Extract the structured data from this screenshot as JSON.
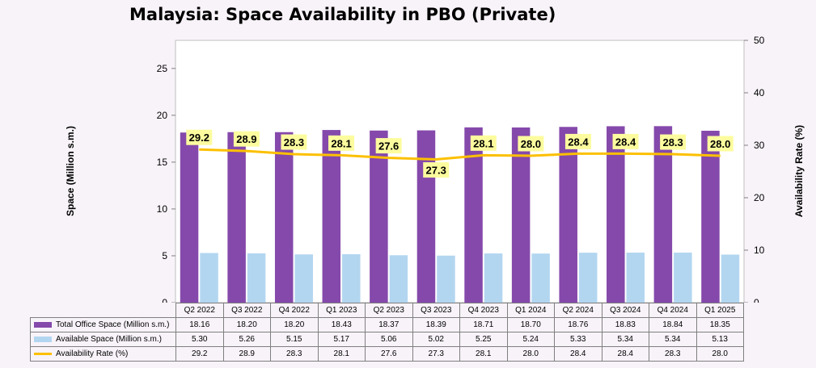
{
  "chart_data": {
    "type": "bar",
    "title": "Malaysia: Space Availability in PBO (Private)",
    "ylabel": "Space (Million s.m.)",
    "ylabel_right": "Availability Rate (%)",
    "ylim": [
      0,
      28
    ],
    "yticks": [
      0,
      5,
      10,
      15,
      20,
      25
    ],
    "ylim_right": [
      0,
      50
    ],
    "yticks_right": [
      0,
      10,
      20,
      30,
      40,
      50
    ],
    "categories": [
      "Q2 2022",
      "Q3 2022",
      "Q4 2022",
      "Q1 2023",
      "Q2 2023",
      "Q3 2023",
      "Q4 2023",
      "Q1 2024",
      "Q2 2024",
      "Q3 2024",
      "Q4 2024",
      "Q1 2025"
    ],
    "series": [
      {
        "name": "Total Office Space (Million s.m.)",
        "kind": "bar",
        "color": "#8549ab",
        "values": [
          18.16,
          18.2,
          18.2,
          18.43,
          18.37,
          18.39,
          18.71,
          18.7,
          18.76,
          18.83,
          18.84,
          18.35
        ],
        "display": [
          "18.16",
          "18.20",
          "18.20",
          "18.43",
          "18.37",
          "18.39",
          "18.71",
          "18.70",
          "18.76",
          "18.83",
          "18.84",
          "18.35"
        ]
      },
      {
        "name": "Available Space (Million s.m.)",
        "kind": "bar",
        "color": "#b3d6f0",
        "values": [
          5.3,
          5.26,
          5.15,
          5.17,
          5.06,
          5.02,
          5.25,
          5.24,
          5.33,
          5.34,
          5.34,
          5.13
        ],
        "display": [
          "5.30",
          "5.26",
          "5.15",
          "5.17",
          "5.06",
          "5.02",
          "5.25",
          "5.24",
          "5.33",
          "5.34",
          "5.34",
          "5.13"
        ]
      },
      {
        "name": "Availability Rate (%)",
        "kind": "line",
        "axis": "right",
        "color": "#fcc000",
        "values": [
          29.2,
          28.9,
          28.3,
          28.1,
          27.6,
          27.3,
          28.1,
          28.0,
          28.4,
          28.4,
          28.3,
          28.0
        ],
        "display": [
          "29.2",
          "28.9",
          "28.3",
          "28.1",
          "27.6",
          "27.3",
          "28.1",
          "28.0",
          "28.4",
          "28.4",
          "28.3",
          "28.0"
        ]
      }
    ],
    "label_bg": "#fcfc9e",
    "grid": false,
    "legend": "data-table"
  }
}
